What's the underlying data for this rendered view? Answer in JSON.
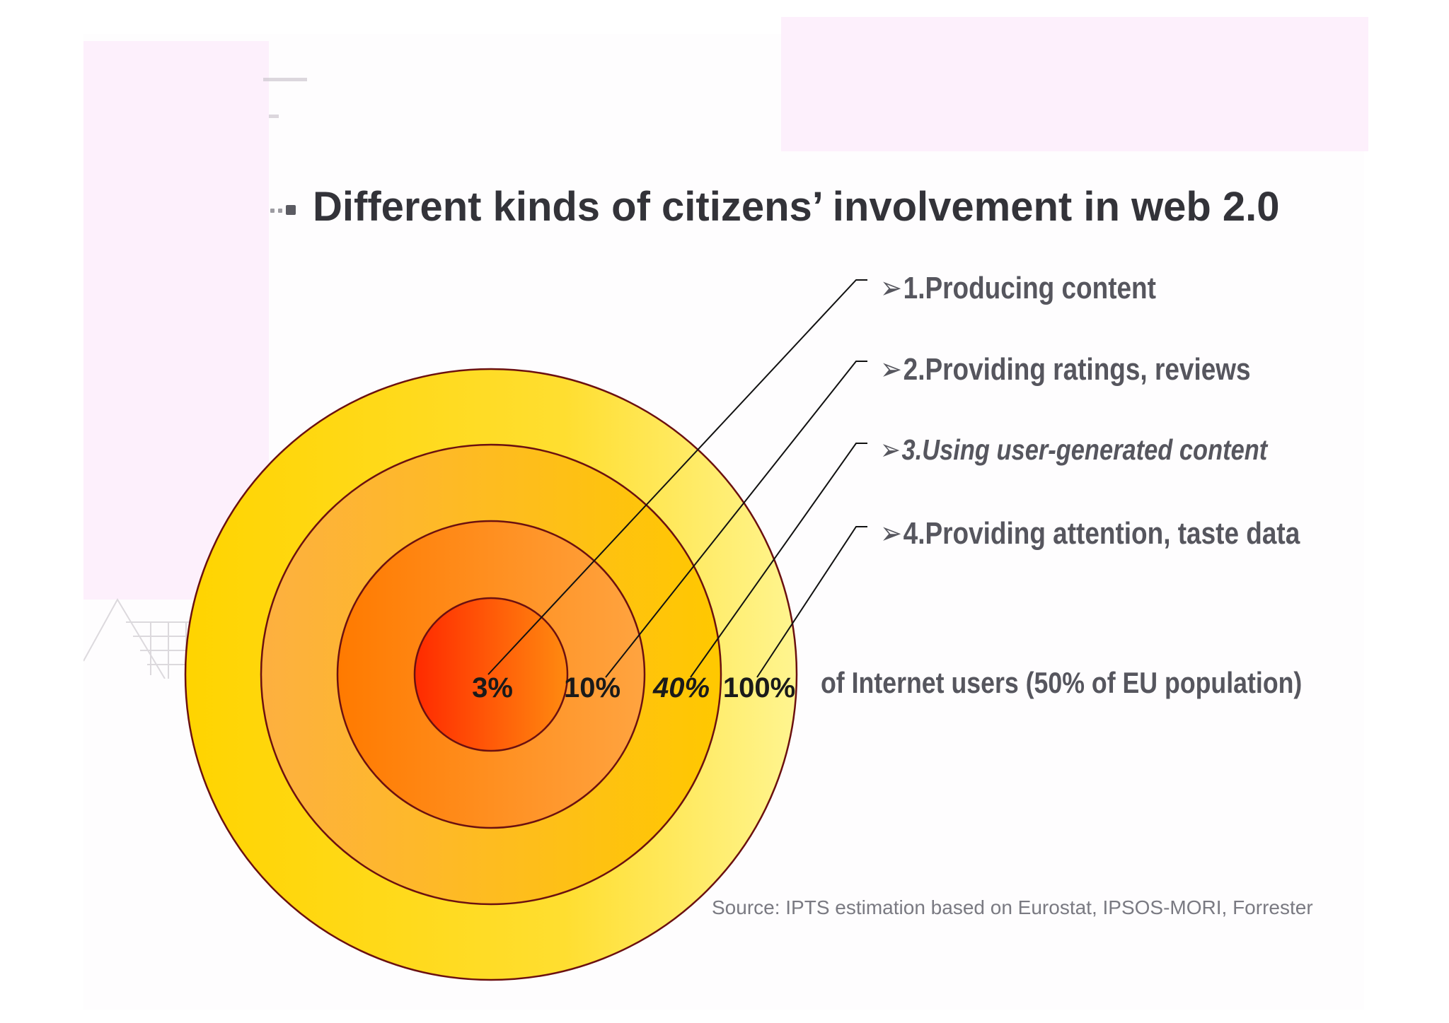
{
  "slide": {
    "title": "Different kinds of citizens’ involvement in web 2.0"
  },
  "diagram": {
    "type": "concentric-circles",
    "rings": [
      {
        "percent_label": "100%",
        "style": "normal"
      },
      {
        "percent_label": "40%",
        "style": "italic"
      },
      {
        "percent_label": "10%",
        "style": "normal"
      },
      {
        "percent_label": "3%",
        "style": "normal"
      }
    ],
    "legend": [
      {
        "marker": "➢",
        "text": "1.Producing content",
        "style": "normal"
      },
      {
        "marker": "➢",
        "text": "2.Providing ratings, reviews",
        "style": "normal"
      },
      {
        "marker": "➢",
        "text": "3.Using user-generated content",
        "style": "italic"
      },
      {
        "marker": "➢",
        "text": "4.Providing attention, taste data",
        "style": "normal"
      }
    ],
    "population_note": "of Internet users (50% of EU population)",
    "source": "Source: IPTS estimation based on Eurostat, IPSOS-MORI, Forrester"
  },
  "colors": {
    "title": "#333339",
    "legend_text": "#56565e",
    "ring_outline": "#6b1010",
    "leader_line": "#111111",
    "outer_ring": [
      "#ffd400",
      "#fff590"
    ],
    "second_ring": [
      "#fdb040",
      "#ffc800"
    ],
    "third_ring": [
      "#ff7a00",
      "#ffa440"
    ],
    "inner_ring": [
      "#ff2a00",
      "#ff8a10"
    ],
    "background_pink": "#fdf0fc"
  }
}
